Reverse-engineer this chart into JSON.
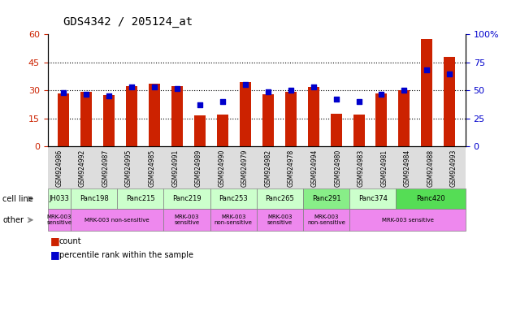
{
  "title": "GDS4342 / 205124_at",
  "samples": [
    "GSM924986",
    "GSM924992",
    "GSM924987",
    "GSM924995",
    "GSM924985",
    "GSM924991",
    "GSM924989",
    "GSM924990",
    "GSM924979",
    "GSM924982",
    "GSM924978",
    "GSM924994",
    "GSM924980",
    "GSM924983",
    "GSM924981",
    "GSM924984",
    "GSM924988",
    "GSM924993"
  ],
  "red_values": [
    28.5,
    29.5,
    27.5,
    32.5,
    33.5,
    32.5,
    16.5,
    17.0,
    34.5,
    28.0,
    29.5,
    32.0,
    17.5,
    17.0,
    28.5,
    30.0,
    57.5,
    48.0
  ],
  "blue_values": [
    48,
    47,
    45,
    53,
    53,
    52,
    37,
    40,
    55,
    49,
    50,
    53,
    42,
    40,
    47,
    50,
    68,
    65
  ],
  "ylim_left": [
    0,
    60
  ],
  "ylim_right": [
    0,
    100
  ],
  "yticks_left": [
    0,
    15,
    30,
    45,
    60
  ],
  "yticks_right": [
    0,
    25,
    50,
    75,
    100
  ],
  "cell_lines": [
    {
      "label": "JH033",
      "start": 0,
      "end": 1,
      "color": "#ccffcc"
    },
    {
      "label": "Panc198",
      "start": 1,
      "end": 3,
      "color": "#ccffcc"
    },
    {
      "label": "Panc215",
      "start": 3,
      "end": 5,
      "color": "#ccffcc"
    },
    {
      "label": "Panc219",
      "start": 5,
      "end": 7,
      "color": "#ccffcc"
    },
    {
      "label": "Panc253",
      "start": 7,
      "end": 9,
      "color": "#ccffcc"
    },
    {
      "label": "Panc265",
      "start": 9,
      "end": 11,
      "color": "#ccffcc"
    },
    {
      "label": "Panc291",
      "start": 11,
      "end": 13,
      "color": "#88ee88"
    },
    {
      "label": "Panc374",
      "start": 13,
      "end": 15,
      "color": "#ccffcc"
    },
    {
      "label": "Panc420",
      "start": 15,
      "end": 18,
      "color": "#55dd55"
    }
  ],
  "other_rows": [
    {
      "label": "MRK-003\nsensitive",
      "start": 0,
      "end": 1,
      "color": "#ee88ee"
    },
    {
      "label": "MRK-003 non-sensitive",
      "start": 1,
      "end": 5,
      "color": "#ee88ee"
    },
    {
      "label": "MRK-003\nsensitive",
      "start": 5,
      "end": 7,
      "color": "#ee88ee"
    },
    {
      "label": "MRK-003\nnon-sensitive",
      "start": 7,
      "end": 9,
      "color": "#ee88ee"
    },
    {
      "label": "MRK-003\nsensitive",
      "start": 9,
      "end": 11,
      "color": "#ee88ee"
    },
    {
      "label": "MRK-003\nnon-sensitive",
      "start": 11,
      "end": 13,
      "color": "#ee88ee"
    },
    {
      "label": "MRK-003 sensitive",
      "start": 13,
      "end": 18,
      "color": "#ee88ee"
    }
  ],
  "bar_color": "#cc2200",
  "marker_color": "#0000cc",
  "tick_color_left": "#cc2200",
  "tick_color_right": "#0000cc",
  "sample_bg_color": "#dddddd",
  "gridline_color": "#000000"
}
